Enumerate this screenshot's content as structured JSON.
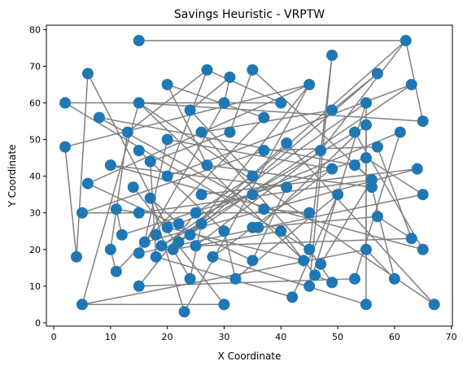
{
  "chart_data": {
    "type": "scatter",
    "title": "Savings Heuristic - VRPTW",
    "xlabel": "X Coordinate",
    "ylabel": "Y Coordinate",
    "xlim": [
      -1.3,
      70.2
    ],
    "ylim": [
      -0.9,
      81.2
    ],
    "xticks": [
      0,
      10,
      20,
      30,
      40,
      50,
      60,
      70
    ],
    "yticks": [
      0,
      10,
      20,
      30,
      40,
      50,
      60,
      70,
      80
    ],
    "grid": false,
    "colors": {
      "points": "#1f77b4",
      "route": "#808080"
    },
    "points": [
      [
        15,
        77
      ],
      [
        62,
        77
      ],
      [
        49,
        73
      ],
      [
        27,
        69
      ],
      [
        35,
        69
      ],
      [
        6,
        68
      ],
      [
        57,
        68
      ],
      [
        31,
        67
      ],
      [
        20,
        65
      ],
      [
        45,
        65
      ],
      [
        63,
        65
      ],
      [
        2,
        60
      ],
      [
        15,
        60
      ],
      [
        30,
        60
      ],
      [
        40,
        60
      ],
      [
        55,
        60
      ],
      [
        24,
        58
      ],
      [
        49,
        58
      ],
      [
        8,
        56
      ],
      [
        37,
        56
      ],
      [
        65,
        55
      ],
      [
        55,
        54
      ],
      [
        13,
        52
      ],
      [
        26,
        52
      ],
      [
        31,
        52
      ],
      [
        53,
        52
      ],
      [
        61,
        52
      ],
      [
        20,
        50
      ],
      [
        41,
        49
      ],
      [
        2,
        48
      ],
      [
        57,
        48
      ],
      [
        15,
        47
      ],
      [
        37,
        47
      ],
      [
        47,
        47
      ],
      [
        55,
        45
      ],
      [
        17,
        44
      ],
      [
        27,
        43
      ],
      [
        10,
        43
      ],
      [
        49,
        42
      ],
      [
        53,
        43
      ],
      [
        64,
        42
      ],
      [
        20,
        40
      ],
      [
        35,
        40
      ],
      [
        56,
        39
      ],
      [
        6,
        38
      ],
      [
        14,
        37
      ],
      [
        41,
        37
      ],
      [
        56,
        37
      ],
      [
        50,
        35
      ],
      [
        26,
        35
      ],
      [
        35,
        35
      ],
      [
        65,
        35
      ],
      [
        17,
        34
      ],
      [
        11,
        31
      ],
      [
        37,
        31
      ],
      [
        5,
        30
      ],
      [
        15,
        30
      ],
      [
        25,
        30
      ],
      [
        45,
        30
      ],
      [
        57,
        29
      ],
      [
        36,
        26
      ],
      [
        26,
        27
      ],
      [
        20,
        26
      ],
      [
        22,
        27
      ],
      [
        35,
        26
      ],
      [
        12,
        24
      ],
      [
        18,
        24
      ],
      [
        24,
        24
      ],
      [
        40,
        25
      ],
      [
        30,
        25
      ],
      [
        63,
        23
      ],
      [
        16,
        22
      ],
      [
        22,
        22
      ],
      [
        19,
        21
      ],
      [
        25,
        21
      ],
      [
        10,
        20
      ],
      [
        21,
        20
      ],
      [
        45,
        20
      ],
      [
        55,
        20
      ],
      [
        65,
        20
      ],
      [
        15,
        19
      ],
      [
        4,
        18
      ],
      [
        18,
        18
      ],
      [
        28,
        18
      ],
      [
        44,
        17
      ],
      [
        35,
        17
      ],
      [
        47,
        16
      ],
      [
        11,
        14
      ],
      [
        46,
        13
      ],
      [
        32,
        12
      ],
      [
        24,
        12
      ],
      [
        53,
        12
      ],
      [
        60,
        12
      ],
      [
        15,
        10
      ],
      [
        45,
        10
      ],
      [
        49,
        11
      ],
      [
        42,
        7
      ],
      [
        5,
        5
      ],
      [
        30,
        5
      ],
      [
        55,
        5
      ],
      [
        67,
        5
      ],
      [
        23,
        3
      ]
    ],
    "route_segments": [
      [
        [
          15,
          77
        ],
        [
          62,
          77
        ]
      ],
      [
        [
          62,
          77
        ],
        [
          65,
          55
        ]
      ],
      [
        [
          65,
          55
        ],
        [
          15,
          60
        ]
      ],
      [
        [
          15,
          60
        ],
        [
          67,
          5
        ]
      ],
      [
        [
          67,
          5
        ],
        [
          41,
          49
        ]
      ],
      [
        [
          41,
          49
        ],
        [
          22,
          22
        ]
      ],
      [
        [
          22,
          22
        ],
        [
          63,
          65
        ]
      ],
      [
        [
          63,
          65
        ],
        [
          20,
          40
        ]
      ],
      [
        [
          20,
          40
        ],
        [
          27,
          69
        ]
      ],
      [
        [
          27,
          69
        ],
        [
          40,
          60
        ]
      ],
      [
        [
          40,
          60
        ],
        [
          2,
          60
        ]
      ],
      [
        [
          2,
          60
        ],
        [
          45,
          20
        ]
      ],
      [
        [
          45,
          20
        ],
        [
          49,
          73
        ]
      ],
      [
        [
          49,
          73
        ],
        [
          45,
          10
        ]
      ],
      [
        [
          45,
          10
        ],
        [
          55,
          60
        ]
      ],
      [
        [
          55,
          60
        ],
        [
          19,
          21
        ]
      ],
      [
        [
          19,
          21
        ],
        [
          53,
          52
        ]
      ],
      [
        [
          53,
          52
        ],
        [
          65,
          20
        ]
      ],
      [
        [
          65,
          20
        ],
        [
          10,
          43
        ]
      ],
      [
        [
          10,
          43
        ],
        [
          41,
          37
        ]
      ],
      [
        [
          41,
          37
        ],
        [
          35,
          17
        ]
      ],
      [
        [
          35,
          17
        ],
        [
          6,
          38
        ]
      ],
      [
        [
          6,
          38
        ],
        [
          45,
          65
        ]
      ],
      [
        [
          45,
          65
        ],
        [
          23,
          3
        ]
      ],
      [
        [
          23,
          3
        ],
        [
          17,
          34
        ]
      ],
      [
        [
          17,
          34
        ],
        [
          22,
          27
        ]
      ],
      [
        [
          22,
          27
        ],
        [
          61,
          52
        ]
      ],
      [
        [
          61,
          52
        ],
        [
          53,
          12
        ]
      ],
      [
        [
          53,
          12
        ],
        [
          15,
          10
        ]
      ],
      [
        [
          15,
          10
        ],
        [
          25,
          30
        ]
      ],
      [
        [
          25,
          30
        ],
        [
          35,
          40
        ]
      ],
      [
        [
          35,
          40
        ],
        [
          62,
          77
        ]
      ],
      [
        [
          62,
          77
        ],
        [
          47,
          47
        ]
      ],
      [
        [
          47,
          47
        ],
        [
          25,
          21
        ]
      ],
      [
        [
          25,
          21
        ],
        [
          63,
          23
        ]
      ],
      [
        [
          63,
          23
        ],
        [
          57,
          48
        ]
      ],
      [
        [
          57,
          48
        ],
        [
          37,
          47
        ]
      ],
      [
        [
          37,
          47
        ],
        [
          5,
          30
        ]
      ],
      [
        [
          5,
          30
        ],
        [
          45,
          30
        ]
      ],
      [
        [
          45,
          30
        ],
        [
          37,
          31
        ]
      ],
      [
        [
          37,
          31
        ],
        [
          8,
          56
        ]
      ],
      [
        [
          8,
          56
        ],
        [
          53,
          43
        ]
      ],
      [
        [
          53,
          43
        ],
        [
          56,
          39
        ]
      ],
      [
        [
          56,
          39
        ],
        [
          47,
          16
        ]
      ],
      [
        [
          47,
          16
        ],
        [
          26,
          52
        ]
      ],
      [
        [
          26,
          52
        ],
        [
          49,
          58
        ]
      ],
      [
        [
          49,
          58
        ],
        [
          57,
          68
        ]
      ],
      [
        [
          57,
          68
        ],
        [
          24,
          24
        ]
      ],
      [
        [
          24,
          24
        ],
        [
          45,
          65
        ]
      ],
      [
        [
          45,
          65
        ],
        [
          2,
          48
        ]
      ],
      [
        [
          2,
          48
        ],
        [
          4,
          18
        ]
      ],
      [
        [
          4,
          18
        ],
        [
          6,
          68
        ]
      ],
      [
        [
          6,
          68
        ],
        [
          20,
          26
        ]
      ],
      [
        [
          20,
          26
        ],
        [
          44,
          17
        ]
      ],
      [
        [
          44,
          17
        ],
        [
          15,
          60
        ]
      ],
      [
        [
          15,
          60
        ],
        [
          5,
          5
        ]
      ],
      [
        [
          5,
          5
        ],
        [
          55,
          20
        ]
      ],
      [
        [
          55,
          20
        ],
        [
          55,
          54
        ]
      ],
      [
        [
          55,
          54
        ],
        [
          36,
          26
        ]
      ],
      [
        [
          36,
          26
        ],
        [
          57,
          29
        ]
      ],
      [
        [
          57,
          29
        ],
        [
          63,
          23
        ]
      ],
      [
        [
          15,
          47
        ],
        [
          30,
          25
        ]
      ],
      [
        [
          30,
          25
        ],
        [
          32,
          12
        ]
      ],
      [
        [
          32,
          12
        ],
        [
          50,
          35
        ]
      ],
      [
        [
          50,
          35
        ],
        [
          42,
          7
        ]
      ],
      [
        [
          42,
          7
        ],
        [
          18,
          18
        ]
      ],
      [
        [
          18,
          18
        ],
        [
          17,
          44
        ]
      ],
      [
        [
          17,
          44
        ],
        [
          31,
          52
        ]
      ],
      [
        [
          31,
          52
        ],
        [
          35,
          69
        ]
      ],
      [
        [
          35,
          69
        ],
        [
          56,
          39
        ]
      ],
      [
        [
          56,
          39
        ],
        [
          15,
          30
        ]
      ],
      [
        [
          15,
          30
        ],
        [
          11,
          31
        ]
      ],
      [
        [
          11,
          31
        ],
        [
          12,
          24
        ]
      ],
      [
        [
          12,
          24
        ],
        [
          55,
          45
        ]
      ],
      [
        [
          55,
          45
        ],
        [
          65,
          35
        ]
      ],
      [
        [
          65,
          35
        ],
        [
          15,
          19
        ]
      ],
      [
        [
          15,
          19
        ],
        [
          30,
          60
        ]
      ],
      [
        [
          30,
          60
        ],
        [
          31,
          67
        ]
      ],
      [
        [
          31,
          67
        ],
        [
          24,
          58
        ]
      ],
      [
        [
          24,
          58
        ],
        [
          35,
          40
        ]
      ],
      [
        [
          20,
          65
        ],
        [
          37,
          56
        ]
      ],
      [
        [
          37,
          56
        ],
        [
          11,
          14
        ]
      ],
      [
        [
          11,
          14
        ],
        [
          10,
          20
        ]
      ],
      [
        [
          10,
          20
        ],
        [
          13,
          52
        ]
      ],
      [
        [
          13,
          52
        ],
        [
          27,
          69
        ]
      ],
      [
        [
          26,
          35
        ],
        [
          64,
          42
        ]
      ],
      [
        [
          64,
          42
        ],
        [
          16,
          22
        ]
      ],
      [
        [
          16,
          22
        ],
        [
          20,
          50
        ]
      ],
      [
        [
          20,
          50
        ],
        [
          49,
          42
        ]
      ],
      [
        [
          49,
          42
        ],
        [
          28,
          18
        ]
      ],
      [
        [
          28,
          18
        ],
        [
          55,
          5
        ]
      ],
      [
        [
          55,
          5
        ],
        [
          55,
          60
        ]
      ],
      [
        [
          14,
          37
        ],
        [
          30,
          5
        ]
      ],
      [
        [
          30,
          5
        ],
        [
          5,
          5
        ]
      ],
      [
        [
          60,
          12
        ],
        [
          56,
          37
        ]
      ],
      [
        [
          56,
          37
        ],
        [
          27,
          43
        ]
      ],
      [
        [
          27,
          43
        ],
        [
          20,
          65
        ]
      ],
      [
        [
          46,
          13
        ],
        [
          49,
          11
        ]
      ],
      [
        [
          49,
          11
        ],
        [
          45,
          20
        ]
      ],
      [
        [
          26,
          27
        ],
        [
          24,
          12
        ]
      ],
      [
        [
          24,
          12
        ],
        [
          21,
          20
        ]
      ],
      [
        [
          21,
          20
        ],
        [
          40,
          25
        ]
      ],
      [
        [
          40,
          25
        ],
        [
          46,
          13
        ]
      ],
      [
        [
          55,
          20
        ],
        [
          60,
          12
        ]
      ]
    ]
  }
}
